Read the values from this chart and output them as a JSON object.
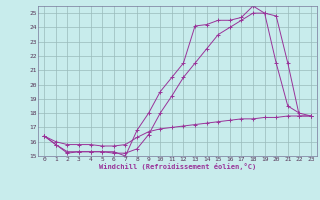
{
  "xlabel": "Windchill (Refroidissement éolien,°C)",
  "background_color": "#c8ecec",
  "line_color": "#993399",
  "grid_color": "#99bbbb",
  "xlim": [
    -0.5,
    23.5
  ],
  "ylim": [
    15,
    25.5
  ],
  "yticks": [
    15,
    16,
    17,
    18,
    19,
    20,
    21,
    22,
    23,
    24,
    25
  ],
  "xticks": [
    0,
    1,
    2,
    3,
    4,
    5,
    6,
    7,
    8,
    9,
    10,
    11,
    12,
    13,
    14,
    15,
    16,
    17,
    18,
    19,
    20,
    21,
    22,
    23
  ],
  "line1_x": [
    0,
    1,
    2,
    3,
    4,
    5,
    6,
    7,
    8,
    9,
    10,
    11,
    12,
    13,
    14,
    15,
    16,
    17,
    18,
    19,
    20,
    21,
    22,
    23
  ],
  "line1_y": [
    16.4,
    15.8,
    15.2,
    15.3,
    15.3,
    15.3,
    15.3,
    15.0,
    16.8,
    18.0,
    19.5,
    20.5,
    21.5,
    24.1,
    24.2,
    24.5,
    24.5,
    24.7,
    25.5,
    25.0,
    21.5,
    18.5,
    18.0,
    17.8
  ],
  "line2_x": [
    0,
    1,
    2,
    3,
    4,
    5,
    6,
    7,
    8,
    9,
    10,
    11,
    12,
    13,
    14,
    15,
    16,
    17,
    18,
    19,
    20,
    21,
    22,
    23
  ],
  "line2_y": [
    16.4,
    15.8,
    15.3,
    15.3,
    15.3,
    15.3,
    15.2,
    15.2,
    15.5,
    16.5,
    18.0,
    19.2,
    20.5,
    21.5,
    22.5,
    23.5,
    24.0,
    24.5,
    25.0,
    25.0,
    24.8,
    21.5,
    17.8,
    17.8
  ],
  "line3_x": [
    0,
    1,
    2,
    3,
    4,
    5,
    6,
    7,
    8,
    9,
    10,
    11,
    12,
    13,
    14,
    15,
    16,
    17,
    18,
    19,
    20,
    21,
    22,
    23
  ],
  "line3_y": [
    16.4,
    16.0,
    15.8,
    15.8,
    15.8,
    15.7,
    15.7,
    15.8,
    16.3,
    16.7,
    16.9,
    17.0,
    17.1,
    17.2,
    17.3,
    17.4,
    17.5,
    17.6,
    17.6,
    17.7,
    17.7,
    17.8,
    17.8,
    17.8
  ]
}
